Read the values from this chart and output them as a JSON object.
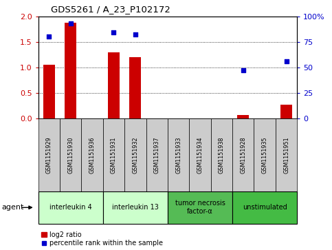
{
  "title": "GDS5261 / A_23_P102172",
  "samples": [
    "GSM1151929",
    "GSM1151930",
    "GSM1151936",
    "GSM1151931",
    "GSM1151932",
    "GSM1151937",
    "GSM1151933",
    "GSM1151934",
    "GSM1151938",
    "GSM1151928",
    "GSM1151935",
    "GSM1151951"
  ],
  "log2_ratio": [
    1.05,
    1.88,
    0.0,
    1.3,
    1.2,
    0.0,
    0.0,
    0.0,
    0.0,
    0.07,
    0.0,
    0.27
  ],
  "percentile": [
    80,
    93,
    0,
    84,
    82,
    0,
    0,
    0,
    0,
    47,
    0,
    56
  ],
  "percentile_shown": [
    true,
    true,
    false,
    true,
    true,
    false,
    false,
    false,
    false,
    true,
    false,
    true
  ],
  "bar_color": "#cc0000",
  "dot_color": "#0000cc",
  "ylim_left": [
    0,
    2
  ],
  "ylim_right": [
    0,
    100
  ],
  "yticks_left": [
    0,
    0.5,
    1.0,
    1.5,
    2
  ],
  "yticks_right": [
    0,
    25,
    50,
    75,
    100
  ],
  "groups": [
    {
      "label": "interleukin 4",
      "start": 0,
      "end": 3,
      "color": "#ccffcc"
    },
    {
      "label": "interleukin 13",
      "start": 3,
      "end": 6,
      "color": "#ccffcc"
    },
    {
      "label": "tumor necrosis\nfactor-α",
      "start": 6,
      "end": 9,
      "color": "#55bb55"
    },
    {
      "label": "unstimulated",
      "start": 9,
      "end": 12,
      "color": "#44bb44"
    }
  ],
  "legend_bar_label": "log2 ratio",
  "legend_dot_label": "percentile rank within the sample",
  "agent_label": "agent",
  "background_color": "#ffffff",
  "bar_color_red": "#cc0000",
  "dot_color_blue": "#0000cc",
  "tick_color_left": "#cc0000",
  "tick_color_right": "#0000cc",
  "sample_box_color": "#cccccc",
  "bar_width": 0.55,
  "figsize": [
    4.83,
    3.63
  ],
  "dpi": 100
}
